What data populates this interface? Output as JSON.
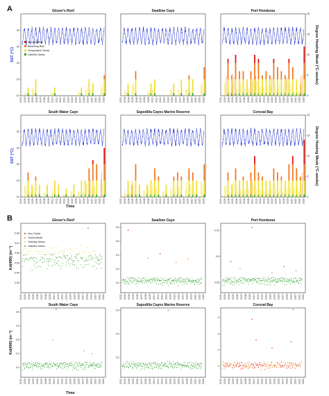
{
  "figure": {
    "panel_a": {
      "label": "A",
      "left_axis_label": "SST (°C)",
      "right_axis_label": "Degree Heating Week (°C-weeks)",
      "x_axis_label": "Time",
      "legend": [
        "Mortality Risk",
        "Bleaching Risk",
        "Temperature Stress",
        "Little/No Stress"
      ],
      "colors": {
        "sst": "#2233cc",
        "mortality": "#e01010",
        "bleaching": "#f07820",
        "temperature": "#f0e030",
        "little": "#2ca02c"
      }
    },
    "panel_b": {
      "label": "B",
      "y_axis_label": "Kd(490) (m⁻¹)",
      "x_axis_label": "Time",
      "legend": [
        "Very Turbid",
        "Turbid Month",
        "Turbidity Stress",
        "Little/No Stress"
      ],
      "colors": {
        "very": "#e01010",
        "turbid": "#f07820",
        "stress": "#f0e030",
        "little": "#2ca02c"
      }
    }
  },
  "chart_data": [
    {
      "type": "line",
      "panel": "A",
      "title": "Glover's Reef",
      "x_ticks": [
        "2002",
        "2003",
        "2004",
        "2005",
        "2006",
        "2007",
        "2008",
        "2009",
        "2010",
        "2011",
        "2012",
        "2013",
        "2014",
        "2015",
        "2016",
        "2017",
        "2018",
        "2019",
        "2020",
        "2021",
        "2022",
        "2023"
      ],
      "sst_ylim": [
        10,
        35
      ],
      "sst_ticks": [
        "30",
        "25",
        "20",
        "15",
        "10"
      ],
      "sst_range": [
        26,
        30.5
      ],
      "dhw_ylim": [
        0,
        20
      ],
      "dhw_peaks": [
        {
          "year": 2003,
          "value": 2
        },
        {
          "year": 2005,
          "value": 4
        },
        {
          "year": 2010,
          "value": 2
        },
        {
          "year": 2017,
          "value": 2
        },
        {
          "year": 2019,
          "value": 4
        },
        {
          "year": 2020,
          "value": 3
        },
        {
          "year": 2023,
          "value": 5
        }
      ]
    },
    {
      "type": "line",
      "panel": "A",
      "title": "Swallow Caye",
      "x_ticks": [
        "2002",
        "2003",
        "2004",
        "2005",
        "2006",
        "2007",
        "2008",
        "2009",
        "2010",
        "2011",
        "2012",
        "2013",
        "2014",
        "2015",
        "2016",
        "2017",
        "2018",
        "2019",
        "2020",
        "2021",
        "2022",
        "2023"
      ],
      "sst_range": [
        26,
        30.5
      ],
      "dhw_ylim": [
        0,
        20
      ],
      "dhw_peaks": [
        {
          "year": 2003,
          "value": 3
        },
        {
          "year": 2005,
          "value": 6
        },
        {
          "year": 2009,
          "value": 3
        },
        {
          "year": 2010,
          "value": 4
        },
        {
          "year": 2015,
          "value": 3
        },
        {
          "year": 2017,
          "value": 4
        },
        {
          "year": 2019,
          "value": 5
        },
        {
          "year": 2020,
          "value": 4
        },
        {
          "year": 2023,
          "value": 7
        }
      ]
    },
    {
      "type": "line",
      "panel": "A",
      "title": "Port Honduras",
      "x_ticks": [
        "2002",
        "2003",
        "2004",
        "2005",
        "2006",
        "2007",
        "2008",
        "2009",
        "2010",
        "2011",
        "2012",
        "2013",
        "2014",
        "2015",
        "2016",
        "2017",
        "2018",
        "2019",
        "2020",
        "2021",
        "2022",
        "2023"
      ],
      "dhw_ticks": [
        "20",
        "15",
        "10",
        "5",
        "0"
      ],
      "sst_range": [
        26,
        30.5
      ],
      "dhw_ylim": [
        0,
        20
      ],
      "dhw_peaks": [
        {
          "year": 2003,
          "value": 9
        },
        {
          "year": 2004,
          "value": 5
        },
        {
          "year": 2005,
          "value": 10
        },
        {
          "year": 2006,
          "value": 6
        },
        {
          "year": 2007,
          "value": 6
        },
        {
          "year": 2008,
          "value": 4
        },
        {
          "year": 2009,
          "value": 6
        },
        {
          "year": 2010,
          "value": 10
        },
        {
          "year": 2011,
          "value": 9
        },
        {
          "year": 2012,
          "value": 5
        },
        {
          "year": 2013,
          "value": 6
        },
        {
          "year": 2014,
          "value": 5
        },
        {
          "year": 2015,
          "value": 9
        },
        {
          "year": 2016,
          "value": 7
        },
        {
          "year": 2017,
          "value": 6
        },
        {
          "year": 2018,
          "value": 5
        },
        {
          "year": 2019,
          "value": 9
        },
        {
          "year": 2020,
          "value": 7
        },
        {
          "year": 2021,
          "value": 4
        },
        {
          "year": 2022,
          "value": 3
        },
        {
          "year": 2023,
          "value": 12
        }
      ]
    },
    {
      "type": "line",
      "panel": "A",
      "title": "South Water Caye",
      "x_ticks": [
        "2002",
        "2003",
        "2004",
        "2005",
        "2006",
        "2007",
        "2008",
        "2009",
        "2010",
        "2011",
        "2012",
        "2013",
        "2014",
        "2015",
        "2016",
        "2017",
        "2018",
        "2019",
        "2020",
        "2021",
        "2022",
        "2023"
      ],
      "sst_ticks": [
        "30",
        "25",
        "20",
        "15",
        "10"
      ],
      "sst_range": [
        26,
        30.5
      ],
      "dhw_ylim": [
        0,
        20
      ],
      "dhw_peaks": [
        {
          "year": 2003,
          "value": 6
        },
        {
          "year": 2004,
          "value": 3
        },
        {
          "year": 2005,
          "value": 5
        },
        {
          "year": 2006,
          "value": 3
        },
        {
          "year": 2008,
          "value": 3
        },
        {
          "year": 2010,
          "value": 4
        },
        {
          "year": 2011,
          "value": 3
        },
        {
          "year": 2013,
          "value": 2
        },
        {
          "year": 2015,
          "value": 3
        },
        {
          "year": 2017,
          "value": 4
        },
        {
          "year": 2018,
          "value": 4
        },
        {
          "year": 2019,
          "value": 7
        },
        {
          "year": 2020,
          "value": 9
        },
        {
          "year": 2021,
          "value": 8
        },
        {
          "year": 2023,
          "value": 12
        }
      ]
    },
    {
      "type": "line",
      "panel": "A",
      "title": "Sapodilla Cayes Marine Reserve",
      "x_ticks": [
        "2002",
        "2003",
        "2004",
        "2005",
        "2006",
        "2007",
        "2008",
        "2009",
        "2010",
        "2011",
        "2012",
        "2013",
        "2014",
        "2015",
        "2016",
        "2017",
        "2018",
        "2019",
        "2020",
        "2021",
        "2022",
        "2023"
      ],
      "sst_range": [
        26,
        30.5
      ],
      "dhw_ylim": [
        0,
        20
      ],
      "dhw_peaks": [
        {
          "year": 2003,
          "value": 4
        },
        {
          "year": 2004,
          "value": 3
        },
        {
          "year": 2005,
          "value": 8
        },
        {
          "year": 2006,
          "value": 3
        },
        {
          "year": 2008,
          "value": 3
        },
        {
          "year": 2009,
          "value": 4
        },
        {
          "year": 2010,
          "value": 7
        },
        {
          "year": 2011,
          "value": 5
        },
        {
          "year": 2013,
          "value": 3
        },
        {
          "year": 2015,
          "value": 5
        },
        {
          "year": 2016,
          "value": 6
        },
        {
          "year": 2017,
          "value": 5
        },
        {
          "year": 2019,
          "value": 7
        },
        {
          "year": 2020,
          "value": 6
        },
        {
          "year": 2021,
          "value": 4
        },
        {
          "year": 2023,
          "value": 8
        }
      ]
    },
    {
      "type": "line",
      "panel": "A",
      "title": "Corozal Bay",
      "x_ticks": [
        "2002",
        "2003",
        "2004",
        "2005",
        "2006",
        "2007",
        "2008",
        "2009",
        "2010",
        "2011",
        "2012",
        "2013",
        "2014",
        "2015",
        "2016",
        "2017",
        "2018",
        "2019",
        "2020",
        "2021",
        "2022",
        "2023"
      ],
      "dhw_ticks": [
        "20",
        "15",
        "10",
        "5",
        "0"
      ],
      "sst_range": [
        26,
        30.5
      ],
      "dhw_ylim": [
        0,
        20
      ],
      "dhw_peaks": [
        {
          "year": 2003,
          "value": 6
        },
        {
          "year": 2004,
          "value": 3
        },
        {
          "year": 2005,
          "value": 7
        },
        {
          "year": 2006,
          "value": 4
        },
        {
          "year": 2007,
          "value": 5
        },
        {
          "year": 2008,
          "value": 4
        },
        {
          "year": 2009,
          "value": 6
        },
        {
          "year": 2010,
          "value": 10
        },
        {
          "year": 2011,
          "value": 6
        },
        {
          "year": 2012,
          "value": 5
        },
        {
          "year": 2013,
          "value": 4
        },
        {
          "year": 2014,
          "value": 4
        },
        {
          "year": 2015,
          "value": 7
        },
        {
          "year": 2016,
          "value": 6
        },
        {
          "year": 2017,
          "value": 5
        },
        {
          "year": 2018,
          "value": 4
        },
        {
          "year": 2019,
          "value": 8
        },
        {
          "year": 2020,
          "value": 10
        },
        {
          "year": 2021,
          "value": 7
        },
        {
          "year": 2022,
          "value": 5
        },
        {
          "year": 2023,
          "value": 14
        }
      ]
    },
    {
      "type": "scatter",
      "panel": "B",
      "title": "Glover's Reef",
      "x_ticks": [
        "2002",
        "2003",
        "2004",
        "2005",
        "2006",
        "2007",
        "2008",
        "2009",
        "2010",
        "2011",
        "2012",
        "2013",
        "2014",
        "2015",
        "2016",
        "2017",
        "2018",
        "2019",
        "2020",
        "2021",
        "2022"
      ],
      "ylim": [
        0.02,
        0.09
      ],
      "y_ticks": [
        0.03,
        0.04,
        0.05,
        0.06,
        0.07,
        0.08
      ],
      "outliers": [
        {
          "year": 2009.5,
          "value": 0.065,
          "class": "Turbidity Stress"
        },
        {
          "year": 2016.5,
          "value": 0.068,
          "class": "Turbidity Stress"
        },
        {
          "year": 2018.5,
          "value": 0.085,
          "class": "Very Turbid"
        }
      ]
    },
    {
      "type": "scatter",
      "panel": "B",
      "title": "Swallow Cayo",
      "x_ticks": [
        "2002",
        "2003",
        "2004",
        "2005",
        "2006",
        "2007",
        "2008",
        "2009",
        "2010",
        "2011",
        "2012",
        "2013",
        "2014",
        "2015",
        "2016",
        "2017",
        "2018",
        "2019",
        "2020",
        "2021",
        "2022"
      ],
      "ylim": [
        0.13,
        0.63
      ],
      "y_ticks": [
        0.2,
        0.3,
        0.4,
        0.5,
        0.6
      ],
      "outliers": [
        {
          "year": 2003.5,
          "value": 0.58,
          "class": "Very Turbid"
        },
        {
          "year": 2008.5,
          "value": 0.38,
          "class": "Turbid Month"
        },
        {
          "year": 2011.5,
          "value": 0.41,
          "class": "Very Turbid"
        },
        {
          "year": 2015.5,
          "value": 0.35,
          "class": "Turbid Month"
        },
        {
          "year": 2018.5,
          "value": 0.37,
          "class": "Turbid Month"
        }
      ]
    },
    {
      "type": "scatter",
      "panel": "B",
      "title": "Port Honduras",
      "x_ticks": [
        "2002",
        "2003",
        "2004",
        "2005",
        "2006",
        "2007",
        "2008",
        "2009",
        "2010",
        "2011",
        "2012",
        "2013",
        "2014",
        "2015",
        "2016",
        "2017",
        "2018",
        "2019",
        "2020",
        "2021",
        "2022"
      ],
      "ylim": [
        0.15,
        0.82
      ],
      "y_ticks": [
        0.25,
        0.5,
        0.75
      ],
      "outliers": [
        {
          "year": 2004.2,
          "value": 0.45,
          "class": "Very Turbid"
        },
        {
          "year": 2006.5,
          "value": 0.38,
          "class": "Turbid Month"
        },
        {
          "year": 2009.5,
          "value": 0.78,
          "class": "Very Turbid"
        },
        {
          "year": 2014.5,
          "value": 0.34,
          "class": "Turbid Month"
        },
        {
          "year": 2017.5,
          "value": 0.4,
          "class": "Very Turbid"
        },
        {
          "year": 2020.5,
          "value": 0.36,
          "class": "Turbid Month"
        }
      ]
    },
    {
      "type": "scatter",
      "panel": "B",
      "title": "South Water Caye",
      "x_ticks": [
        "2002",
        "2003",
        "2004",
        "2005",
        "2006",
        "2007",
        "2008",
        "2009",
        "2010",
        "2011",
        "2012",
        "2013",
        "2014",
        "2015",
        "2016",
        "2017",
        "2018",
        "2019",
        "2020",
        "2021",
        "2022"
      ],
      "ylim": [
        0.03,
        0.53
      ],
      "y_ticks": [
        0.1,
        0.2,
        0.3,
        0.4,
        0.5
      ],
      "outliers": [
        {
          "year": 2010.5,
          "value": 0.52,
          "class": "Very Turbid"
        },
        {
          "year": 2009.6,
          "value": 0.3,
          "class": "Turbid Month"
        },
        {
          "year": 2017.5,
          "value": 0.22,
          "class": "Turbid Month"
        },
        {
          "year": 2019.5,
          "value": 0.2,
          "class": "Turbid Month"
        }
      ]
    },
    {
      "type": "scatter",
      "panel": "B",
      "title": "Sapodilla Cayes Marine Reserve",
      "x_ticks": [
        "2002",
        "2003",
        "2004",
        "2005",
        "2006",
        "2007",
        "2008",
        "2009",
        "2010",
        "2011",
        "2012",
        "2013",
        "2014",
        "2015",
        "2016",
        "2017",
        "2018",
        "2019",
        "2020",
        "2021",
        "2022"
      ],
      "ylim": [
        0.03,
        0.62
      ],
      "y_ticks": [
        0.2,
        0.4,
        0.6
      ],
      "outliers": [
        {
          "year": 2013.5,
          "value": 0.6,
          "class": "Very Turbid"
        },
        {
          "year": 2017.5,
          "value": 0.21,
          "class": "Turbidity Stress"
        }
      ]
    },
    {
      "type": "scatter",
      "panel": "B",
      "title": "Corozal Bay",
      "x_ticks": [
        "2002",
        "2003",
        "2004",
        "2005",
        "2006",
        "2007",
        "2008",
        "2009",
        "2010",
        "2011",
        "2012",
        "2013",
        "2014",
        "2015",
        "2016",
        "2017",
        "2018",
        "2019",
        "2020",
        "2021",
        "2022"
      ],
      "ylim": [
        0.3,
        4.6
      ],
      "y_ticks": [
        1,
        2,
        3,
        4
      ],
      "outliers": [
        {
          "year": 2009.5,
          "value": 3.9,
          "class": "Very Turbid"
        },
        {
          "year": 2010.5,
          "value": 2.6,
          "class": "Very Turbid"
        },
        {
          "year": 2014.5,
          "value": 2.1,
          "class": "Very Turbid"
        },
        {
          "year": 2019.8,
          "value": 4.5,
          "class": "Very Turbid"
        },
        {
          "year": 2019.3,
          "value": 2.5,
          "class": "Very Turbid"
        }
      ]
    }
  ]
}
